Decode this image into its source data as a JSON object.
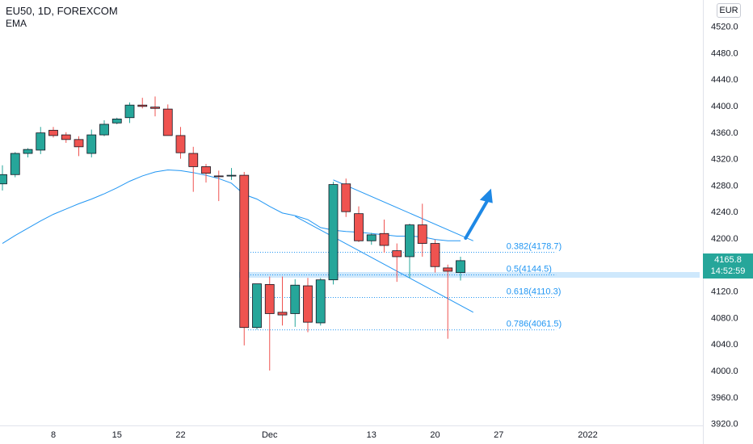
{
  "header": {
    "symbol": "EU50, 1D, FOREXCOM",
    "indicator": "EMA"
  },
  "price_scale": {
    "currency": "EUR",
    "labels": [
      "4520.0",
      "4480.0",
      "4440.0",
      "4400.0",
      "4360.0",
      "4320.0",
      "4280.0",
      "4240.0",
      "4200.0",
      "4160.0",
      "4120.0",
      "4080.0",
      "4040.0",
      "4000.0",
      "3960.0",
      "3920.0"
    ]
  },
  "time_scale": {
    "labels": [
      "8",
      "15",
      "22",
      "Dec",
      "13",
      "20",
      "27",
      "2022"
    ]
  },
  "current_price": {
    "price": "4165.8",
    "countdown": "14:52:59"
  },
  "colors": {
    "up": "#26a69a",
    "down": "#ef5350",
    "ema": "#2196f3",
    "fib": "#2196f3",
    "arrow": "#1e88e5"
  },
  "chart_data": {
    "type": "candlestick",
    "series": [
      {
        "name": "EU50, 1D, FOREXCOM",
        "ohlc": [
          [
            4282,
            4310,
            4272,
            4296
          ],
          [
            4296,
            4330,
            4292,
            4328
          ],
          [
            4328,
            4336,
            4322,
            4334
          ],
          [
            4333,
            4368,
            4327,
            4359
          ],
          [
            4363,
            4368,
            4352,
            4355
          ],
          [
            4356,
            4360,
            4344,
            4349
          ],
          [
            4349,
            4354,
            4324,
            4338
          ],
          [
            4328,
            4364,
            4322,
            4356
          ],
          [
            4356,
            4378,
            4354,
            4372
          ],
          [
            4374,
            4382,
            4372,
            4380
          ],
          [
            4382,
            4405,
            4374,
            4401
          ],
          [
            4401,
            4412,
            4396,
            4399
          ],
          [
            4398,
            4414,
            4384,
            4396
          ],
          [
            4395,
            4402,
            4358,
            4355
          ],
          [
            4355,
            4368,
            4320,
            4329
          ],
          [
            4328,
            4338,
            4270,
            4308
          ],
          [
            4308,
            4312,
            4284,
            4298
          ],
          [
            4294,
            4302,
            4256,
            4293
          ],
          [
            4295,
            4306,
            4288,
            4295
          ],
          [
            4295,
            4300,
            4038,
            4065
          ],
          [
            4065,
            4130,
            4062,
            4131
          ],
          [
            4130,
            4142,
            4000,
            4086
          ],
          [
            4088,
            4142,
            4068,
            4084
          ],
          [
            4086,
            4138,
            4066,
            4129
          ],
          [
            4128,
            4140,
            4058,
            4073
          ],
          [
            4072,
            4140,
            4068,
            4137
          ],
          [
            4137,
            4285,
            4130,
            4281
          ],
          [
            4282,
            4290,
            4232,
            4240
          ],
          [
            4237,
            4248,
            4194,
            4196
          ],
          [
            4196,
            4208,
            4190,
            4205
          ],
          [
            4207,
            4228,
            4178,
            4189
          ],
          [
            4181,
            4192,
            4134,
            4172
          ],
          [
            4172,
            4222,
            4140,
            4220
          ],
          [
            4220,
            4252,
            4172,
            4192
          ],
          [
            4192,
            4198,
            4148,
            4157
          ],
          [
            4155,
            4160,
            4048,
            4150
          ],
          [
            4148,
            4172,
            4136,
            4166
          ]
        ]
      },
      {
        "name": "EMA",
        "values": [
          4192,
          4204,
          4215,
          4226,
          4236,
          4244,
          4252,
          4259,
          4267,
          4276,
          4286,
          4294,
          4300,
          4303,
          4302,
          4299,
          4295,
          4290,
          4283,
          4266,
          4259,
          4248,
          4238,
          4234,
          4228,
          4216,
          4212,
          4210,
          4209,
          4207,
          4205,
          4203,
          4203,
          4202,
          4198,
          4196,
          4196
        ]
      }
    ],
    "x_labels": [
      "8",
      "15",
      "22",
      "Dec",
      "13",
      "20",
      "27",
      "2022"
    ],
    "y_ticks": [
      4520,
      4480,
      4440,
      4400,
      4360,
      4320,
      4280,
      4240,
      4200,
      4160,
      4120,
      4080,
      4040,
      4000,
      3960,
      3920
    ],
    "annotations": {
      "fib_levels": [
        {
          "label": "0.382(4178.7)",
          "value": 4178.7
        },
        {
          "label": "0.5(4144.5)",
          "value": 4144.5
        },
        {
          "label": "0.618(4110.3)",
          "value": 4110.3
        },
        {
          "label": "0.786(4061.5)",
          "value": 4061.5
        }
      ],
      "channel_upper": {
        "from": {
          "bar": 26,
          "price": 4288
        },
        "to": {
          "bar": 37,
          "price": 4196
        }
      },
      "channel_lower": {
        "from": {
          "bar": 23,
          "price": 4233
        },
        "to": {
          "bar": 37,
          "price": 4088
        }
      },
      "support_zone": {
        "price": 4144.5
      },
      "arrow": "up"
    }
  }
}
